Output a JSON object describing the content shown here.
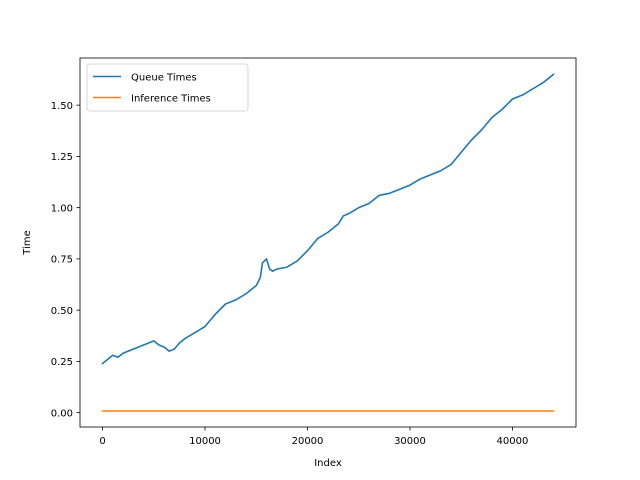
{
  "chart_data": {
    "type": "line",
    "title": "",
    "xlabel": "Index",
    "ylabel": "Time",
    "xlim": [
      -2200,
      46200
    ],
    "ylim": [
      -0.07,
      1.73
    ],
    "xticks": [
      0,
      10000,
      20000,
      30000,
      40000
    ],
    "xtick_labels": [
      "0",
      "10000",
      "20000",
      "30000",
      "40000"
    ],
    "yticks": [
      0.0,
      0.25,
      0.5,
      0.75,
      1.0,
      1.25,
      1.5
    ],
    "ytick_labels": [
      "0.00",
      "0.25",
      "0.50",
      "0.75",
      "1.00",
      "1.25",
      "1.50"
    ],
    "grid": false,
    "legend_position": "upper-left",
    "series": [
      {
        "name": "Queue Times",
        "color": "#1f77b4",
        "x": [
          0,
          1000,
          1500,
          2000,
          3000,
          4000,
          4500,
          5000,
          5500,
          6000,
          6500,
          7000,
          7500,
          8000,
          9000,
          10000,
          11000,
          12000,
          13000,
          14000,
          15000,
          15400,
          15600,
          16000,
          16300,
          16600,
          17000,
          18000,
          19000,
          20000,
          21000,
          22000,
          23000,
          23500,
          24000,
          25000,
          26000,
          27000,
          28000,
          29000,
          30000,
          31000,
          32000,
          33000,
          34000,
          35000,
          36000,
          37000,
          38000,
          39000,
          40000,
          41000,
          42000,
          43000,
          44000
        ],
        "y": [
          0.24,
          0.28,
          0.27,
          0.29,
          0.31,
          0.33,
          0.34,
          0.35,
          0.33,
          0.32,
          0.3,
          0.31,
          0.34,
          0.36,
          0.39,
          0.42,
          0.48,
          0.53,
          0.55,
          0.58,
          0.62,
          0.66,
          0.73,
          0.75,
          0.7,
          0.69,
          0.7,
          0.71,
          0.74,
          0.79,
          0.85,
          0.88,
          0.92,
          0.96,
          0.97,
          1.0,
          1.02,
          1.06,
          1.07,
          1.09,
          1.11,
          1.14,
          1.16,
          1.18,
          1.21,
          1.27,
          1.33,
          1.38,
          1.44,
          1.48,
          1.53,
          1.55,
          1.58,
          1.61,
          1.65
        ]
      },
      {
        "name": "Inference Times",
        "color": "#ff7f0e",
        "x": [
          0,
          44000
        ],
        "y": [
          0.008,
          0.008
        ]
      }
    ]
  }
}
